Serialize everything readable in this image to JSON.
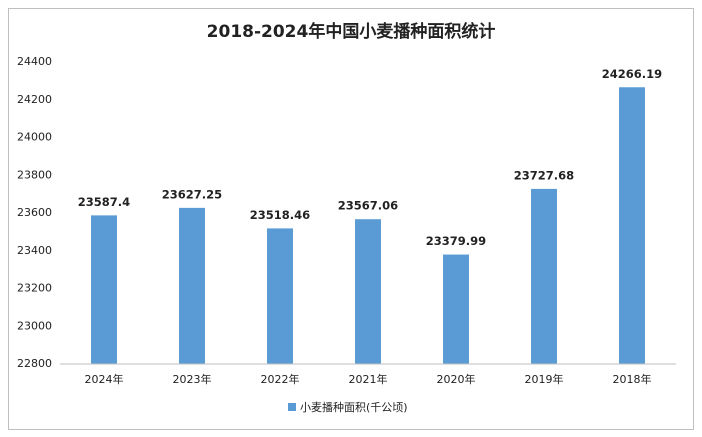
{
  "chart_data": {
    "type": "bar",
    "title": "2018-2024年中国小麦播种面积统计",
    "categories": [
      "2024年",
      "2023年",
      "2022年",
      "2021年",
      "2020年",
      "2019年",
      "2018年"
    ],
    "series": [
      {
        "name": "小麦播种面积(千公顷)",
        "color": "#5b9bd5",
        "values": [
          23587.4,
          23627.25,
          23518.46,
          23567.06,
          23379.99,
          23727.68,
          24266.19
        ]
      }
    ],
    "ylim": [
      22800,
      24400
    ],
    "yticks": [
      22800,
      23000,
      23200,
      23400,
      23600,
      23800,
      24000,
      24200,
      24400
    ],
    "grid": false,
    "legend": "bottom"
  }
}
